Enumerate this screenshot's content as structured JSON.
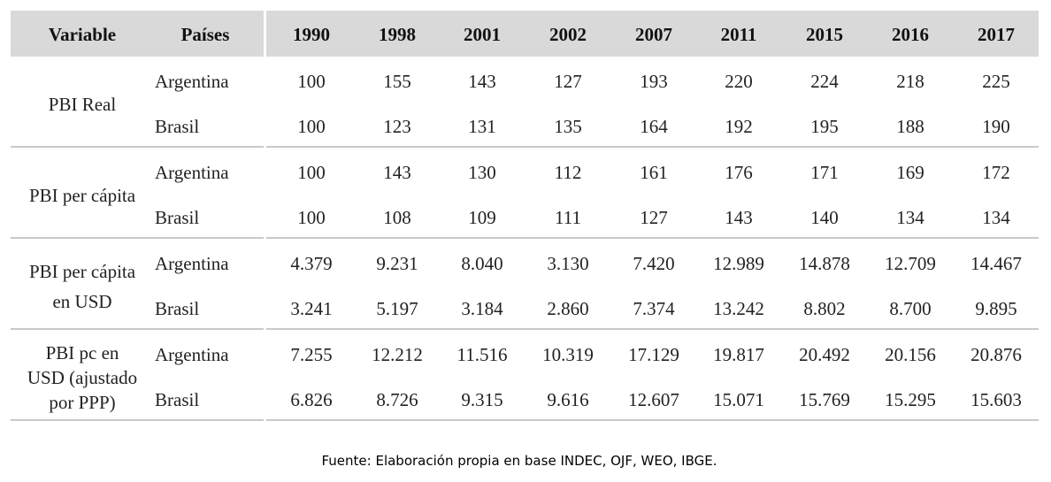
{
  "table": {
    "header_variable": "Variable",
    "header_countries": "Países",
    "years": [
      "1990",
      "1998",
      "2001",
      "2002",
      "2007",
      "2011",
      "2015",
      "2016",
      "2017"
    ],
    "groups": [
      {
        "variable_lines": [
          "PBI Real"
        ],
        "rows": [
          {
            "country": "Argentina",
            "values": [
              "100",
              "155",
              "143",
              "127",
              "193",
              "220",
              "224",
              "218",
              "225"
            ]
          },
          {
            "country": "Brasil",
            "values": [
              "100",
              "123",
              "131",
              "135",
              "164",
              "192",
              "195",
              "188",
              "190"
            ]
          }
        ]
      },
      {
        "variable_lines": [
          "PBI per cápita"
        ],
        "rows": [
          {
            "country": "Argentina",
            "values": [
              "100",
              "143",
              "130",
              "112",
              "161",
              "176",
              "171",
              "169",
              "172"
            ]
          },
          {
            "country": "Brasil",
            "values": [
              "100",
              "108",
              "109",
              "111",
              "127",
              "143",
              "140",
              "134",
              "134"
            ]
          }
        ]
      },
      {
        "variable_lines": [
          "PBI per cápita",
          "en USD"
        ],
        "rows": [
          {
            "country": "Argentina",
            "values": [
              "4.379",
              "9.231",
              "8.040",
              "3.130",
              "7.420",
              "12.989",
              "14.878",
              "12.709",
              "14.467"
            ]
          },
          {
            "country": "Brasil",
            "values": [
              "3.241",
              "5.197",
              "3.184",
              "2.860",
              "7.374",
              "13.242",
              "8.802",
              "8.700",
              "9.895"
            ]
          }
        ]
      },
      {
        "variable_lines": [
          "PBI pc en",
          "USD (ajustado",
          "por PPP)"
        ],
        "rows": [
          {
            "country": "Argentina",
            "values": [
              "7.255",
              "12.212",
              "11.516",
              "10.319",
              "17.129",
              "19.817",
              "20.492",
              "20.156",
              "20.876"
            ]
          },
          {
            "country": "Brasil",
            "values": [
              "6.826",
              "8.726",
              "9.315",
              "9.616",
              "12.607",
              "15.071",
              "15.769",
              "15.295",
              "15.603"
            ]
          }
        ]
      }
    ]
  },
  "source": "Fuente: Elaboración propia en base INDEC, OJF, WEO, IBGE."
}
